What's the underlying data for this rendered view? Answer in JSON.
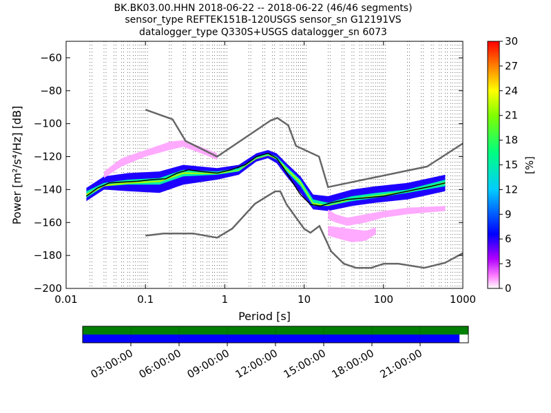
{
  "title_lines": [
    "BK.BK03.00.HHN   2018-06-22 -- 2018-06-22  (46/46 segments)",
    "sensor_type REFTEK151B-120USGS sensor_sn G12191VS",
    "datalogger_type Q330S+USGS datalogger_sn 6073"
  ],
  "colors": {
    "noise_model": "#666666",
    "mean_line": "#000000",
    "timeline_top": "#007f00",
    "timeline_bottom": "#0000ff"
  },
  "chart_data": [
    {
      "type": "heatmap",
      "xlabel": "Period [s]",
      "ylabel": "Power [m²/s⁴/Hz] [dB]",
      "xscale": "log",
      "xlim": [
        0.01,
        1000
      ],
      "ylim": [
        -200,
        -50
      ],
      "xticks": [
        0.01,
        0.1,
        1,
        10,
        100,
        1000
      ],
      "xtick_labels": [
        "0.01",
        "0.1",
        "1",
        "10",
        "100",
        "1000"
      ],
      "yticks": [
        -200,
        -180,
        -160,
        -140,
        -120,
        -100,
        -80,
        -60
      ],
      "ytick_labels": [
        "−200",
        "−180",
        "−160",
        "−140",
        "−120",
        "−100",
        "−80",
        "−60"
      ],
      "grid": "dotted vertical lines at each log decade subdivision",
      "colorbar": {
        "label": "[%]",
        "range": [
          0,
          30
        ],
        "ticks": [
          0,
          3,
          6,
          9,
          12,
          15,
          18,
          21,
          24,
          27,
          30
        ],
        "tick_labels": [
          "0",
          "3",
          "6",
          "9",
          "12",
          "15",
          "18",
          "21",
          "24",
          "27",
          "30"
        ]
      },
      "noise_models": {
        "high": {
          "x": [
            0.1,
            0.22,
            0.32,
            0.8,
            3.8,
            4.6,
            6.3,
            7.9,
            15.4,
            20,
            354.8,
            1000
          ],
          "y": [
            -91.5,
            -97.4,
            -110.5,
            -120,
            -98,
            -96.5,
            -101,
            -113.5,
            -120,
            -138.5,
            -126,
            -112
          ]
        },
        "low": {
          "x": [
            0.1,
            0.17,
            0.4,
            0.8,
            1.24,
            2.4,
            4.3,
            5,
            6,
            10,
            12,
            15.6,
            21.9,
            31.6,
            45,
            70,
            101,
            154,
            328,
            600,
            1000
          ],
          "y": [
            -168,
            -166.7,
            -166.7,
            -169.2,
            -163.7,
            -148.6,
            -141.1,
            -141.1,
            -149,
            -163.8,
            -166.2,
            -162.1,
            -177.5,
            -185,
            -187.5,
            -187.5,
            -185,
            -185,
            -187.5,
            -184.4,
            -178.6
          ]
        }
      },
      "mean_psd": {
        "x": [
          0.018,
          0.025,
          0.035,
          0.05,
          0.08,
          0.12,
          0.18,
          0.25,
          0.35,
          0.5,
          0.8,
          1.2,
          1.8,
          2.5,
          3.5,
          4.5,
          5.5,
          7,
          9,
          12,
          16,
          22,
          35,
          60,
          100,
          200,
          400,
          600
        ],
        "y": [
          -144,
          -139,
          -136,
          -135.5,
          -135,
          -134,
          -133.5,
          -130,
          -128,
          -129,
          -130,
          -128,
          -125,
          -120,
          -118,
          -121,
          -127,
          -135,
          -143,
          -149,
          -150,
          -148,
          -146,
          -145,
          -144,
          -141,
          -138,
          -136
        ]
      },
      "psd_bands": [
        {
          "x": [
            0.018,
            0.03,
            0.06,
            0.15,
            0.3,
            0.8,
            1.5,
            2.5,
            3.5,
            4.5,
            6,
            9,
            13,
            20,
            40,
            80,
            200,
            600
          ],
          "upper": [
            -139,
            -132,
            -130,
            -129,
            -125,
            -127,
            -125,
            -118,
            -116,
            -118,
            -124,
            -132,
            -143,
            -144,
            -140,
            -138,
            -136,
            -131
          ],
          "lower": [
            -147,
            -140,
            -141,
            -142,
            -137,
            -134,
            -131,
            -123,
            -121,
            -124,
            -132,
            -142,
            -152,
            -153,
            -150,
            -148,
            -146,
            -141
          ],
          "percent": 6
        },
        {
          "x": [
            0.03,
            0.05,
            0.1,
            0.2,
            0.3,
            0.5,
            0.8
          ],
          "upper": [
            -129,
            -121,
            -116,
            -111,
            -110,
            -114,
            -118
          ],
          "lower": [
            -133,
            -126,
            -120,
            -116,
            -114,
            -118,
            -122
          ],
          "percent": 1
        },
        {
          "x": [
            20,
            25,
            35,
            60,
            100,
            200,
            600
          ],
          "upper": [
            -152,
            -155,
            -157,
            -155,
            -153,
            -151,
            -150
          ],
          "lower": [
            -158,
            -160,
            -162,
            -160,
            -157,
            -155,
            -153
          ],
          "percent": 1
        },
        {
          "x": [
            20,
            28,
            40,
            60,
            80
          ],
          "upper": [
            -162,
            -163,
            -164,
            -165,
            -163
          ],
          "lower": [
            -168,
            -170,
            -172,
            -171,
            -167
          ],
          "percent": 1
        },
        {
          "x": [
            0.018,
            0.03,
            0.06,
            0.15,
            0.3,
            0.8,
            1.5,
            2.5,
            3.5,
            4.5,
            6,
            9,
            13,
            20,
            40,
            80,
            200,
            600
          ],
          "upper": [
            -141,
            -136,
            -134,
            -133,
            -128,
            -129,
            -127,
            -120,
            -118,
            -120,
            -126,
            -134,
            -146,
            -148,
            -144,
            -142,
            -140,
            -134
          ],
          "lower": [
            -145,
            -138,
            -137,
            -137,
            -132,
            -131,
            -129,
            -121,
            -119,
            -122,
            -129,
            -138,
            -150,
            -150,
            -147,
            -145,
            -142,
            -138
          ],
          "percent": 15
        },
        {
          "x": [
            0.018,
            0.03,
            0.06,
            0.15,
            0.3,
            0.8,
            1.5,
            2.5,
            3.5,
            4.5,
            6,
            9,
            13,
            20,
            40,
            80,
            200,
            600
          ],
          "upper": [
            -142.5,
            -137,
            -135.5,
            -134.5,
            -129.5,
            -130,
            -128,
            -121,
            -119,
            -121,
            -127,
            -135,
            -148,
            -149.5,
            -145.5,
            -143.5,
            -141,
            -135.5
          ],
          "lower": [
            -144,
            -138,
            -136.5,
            -135.5,
            -130.5,
            -130.5,
            -128.5,
            -121.5,
            -119.5,
            -121.5,
            -128,
            -136.5,
            -149,
            -150,
            -146,
            -144,
            -141.5,
            -136.5
          ],
          "percent": 22
        }
      ]
    },
    {
      "type": "timeline",
      "tick_labels": [
        "03:00:00",
        "06:00:00",
        "09:00:00",
        "12:00:00",
        "15:00:00",
        "18:00:00",
        "21:00:00"
      ],
      "rows": [
        {
          "name": "",
          "color": "#007f00",
          "coverage": [
            0,
            1
          ]
        },
        {
          "name": "",
          "color": "#0000ff",
          "coverage": [
            0,
            0.977
          ]
        }
      ]
    }
  ]
}
